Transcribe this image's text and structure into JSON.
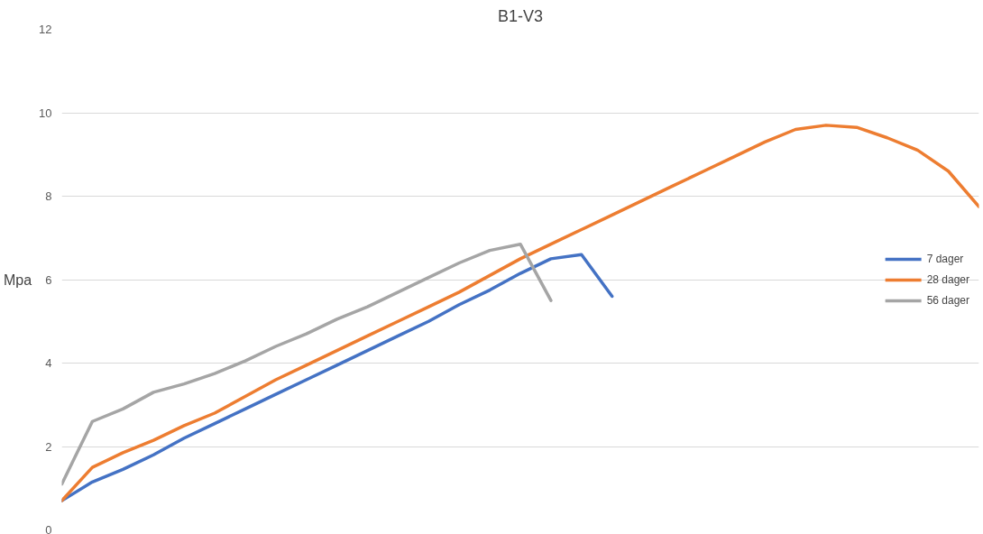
{
  "chart_data": {
    "type": "line",
    "title": "B1-V3",
    "ylabel": "Mpa",
    "categories": [
      null,
      null,
      null,
      null,
      null,
      null,
      null,
      null,
      null,
      null,
      null,
      null,
      null,
      null,
      null,
      null,
      null,
      null,
      null,
      null,
      null,
      null,
      null,
      null,
      null,
      null,
      null,
      null,
      null,
      null,
      null
    ],
    "series": [
      {
        "name": "7 dager",
        "color": "#4472c4",
        "values": [
          0.7,
          1.15,
          1.45,
          1.8,
          2.2,
          2.55,
          2.9,
          3.25,
          3.6,
          3.95,
          4.3,
          4.65,
          5.0,
          5.4,
          5.75,
          6.15,
          6.5,
          6.6,
          5.6,
          null,
          null,
          null,
          null,
          null,
          null,
          null,
          null,
          null,
          null,
          null,
          null
        ]
      },
      {
        "name": "28 dager",
        "color": "#ed7d31",
        "values": [
          0.7,
          1.5,
          1.85,
          2.15,
          2.5,
          2.8,
          3.2,
          3.6,
          3.95,
          4.3,
          4.65,
          5.0,
          5.35,
          5.7,
          6.1,
          6.5,
          6.85,
          7.2,
          7.55,
          7.9,
          8.25,
          8.6,
          8.95,
          9.3,
          9.6,
          9.7,
          9.65,
          9.4,
          9.1,
          8.6,
          7.75
        ]
      },
      {
        "name": "56 dager",
        "color": "#a5a5a5",
        "values": [
          1.1,
          2.6,
          2.9,
          3.3,
          3.5,
          3.75,
          4.05,
          4.4,
          4.7,
          5.05,
          5.35,
          5.7,
          6.05,
          6.4,
          6.7,
          6.85,
          5.5,
          null,
          null,
          null,
          null,
          null,
          null,
          null,
          null,
          null,
          null,
          null,
          null,
          null,
          null
        ]
      }
    ],
    "ylim": [
      0,
      12
    ],
    "yticks": [
      0,
      2,
      4,
      6,
      8,
      10,
      12
    ],
    "grid": "y",
    "legend": "right",
    "marker": "none",
    "line_style": "solid",
    "tick_labels": "y"
  }
}
